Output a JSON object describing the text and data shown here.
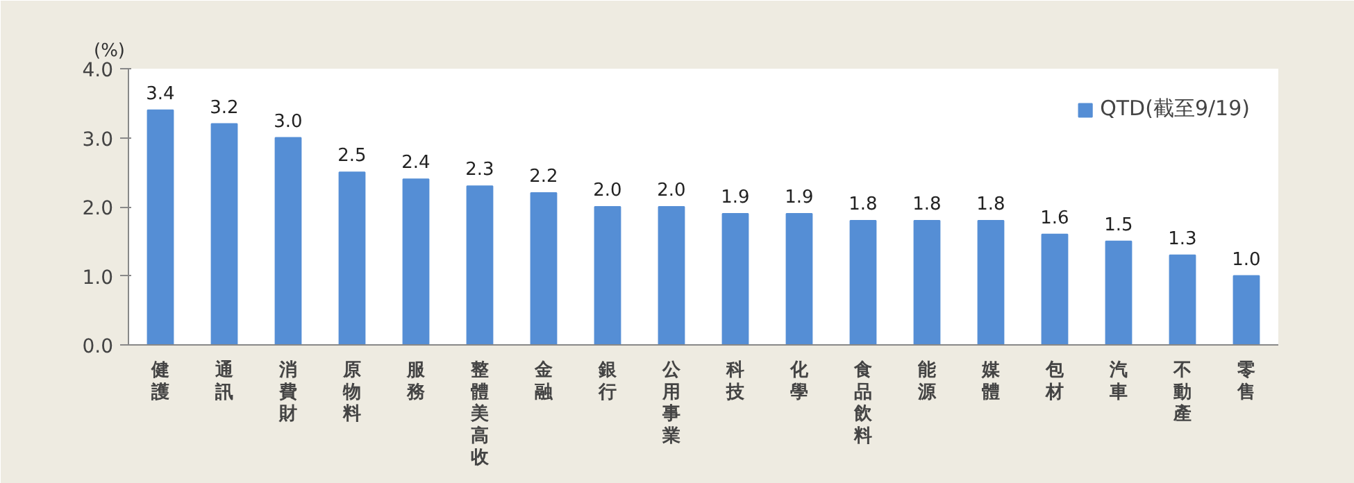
{
  "chart_data": {
    "type": "bar",
    "ylabel": "(%)",
    "categories": [
      "健護",
      "通訊",
      "消費財",
      "原物料",
      "服務",
      "整體美高收",
      "金融",
      "銀行",
      "公用事業",
      "科技",
      "化學",
      "食品飲料",
      "能源",
      "媒體",
      "包材",
      "汽車",
      "不動產",
      "零售"
    ],
    "series": [
      {
        "name": "QTD(截至9/19)",
        "color": "#558ed5",
        "values": [
          3.4,
          3.2,
          3.0,
          2.5,
          2.4,
          2.3,
          2.2,
          2.0,
          2.0,
          1.9,
          1.9,
          1.8,
          1.8,
          1.8,
          1.6,
          1.5,
          1.3,
          1.0
        ],
        "value_labels": [
          "3.4",
          "3.2",
          "3.0",
          "2.5",
          "2.4",
          "2.3",
          "2.2",
          "2.0",
          "2.0",
          "1.9",
          "1.9",
          "1.8",
          "1.8",
          "1.8",
          "1.6",
          "1.5",
          "1.3",
          "1.0"
        ]
      }
    ],
    "ylim": [
      0,
      4
    ],
    "yticks": [
      {
        "value": 0,
        "label": "0.0"
      },
      {
        "value": 1,
        "label": "1.0"
      },
      {
        "value": 2,
        "label": "2.0"
      },
      {
        "value": 3,
        "label": "3.0"
      },
      {
        "value": 4,
        "label": "4.0"
      }
    ],
    "grid": false,
    "legend": "top right"
  }
}
